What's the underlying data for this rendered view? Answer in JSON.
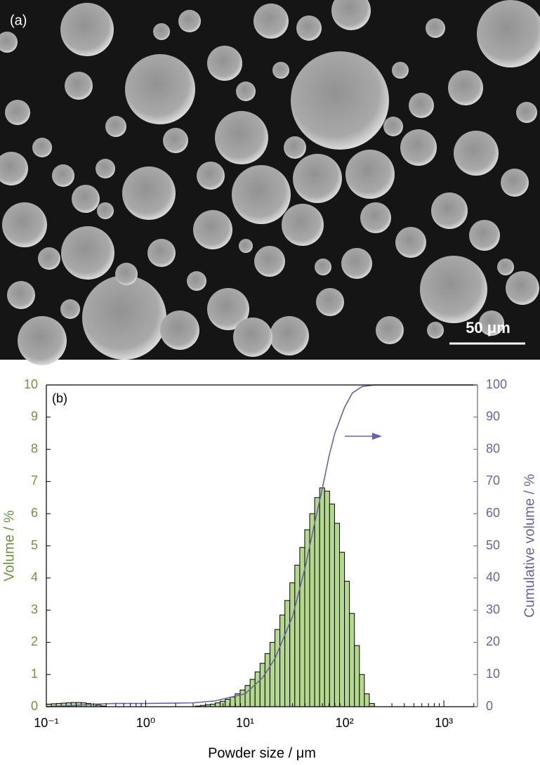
{
  "image": {
    "label": "(a)",
    "scale_bar": "50 μm"
  },
  "chart_data": {
    "type": "histogram",
    "annotation": "(b)",
    "x_label": "Powder size / μm",
    "y_label": "Volume / %",
    "y2_label": "Cumulative volume / %",
    "log_x": true,
    "color": "#b5d98c",
    "y_color": "#6f9440",
    "y2_color": "#6a62a8",
    "bins": [
      0.1,
      0.1122,
      0.1259,
      0.1413,
      0.1585,
      0.1778,
      0.1995,
      0.2239,
      0.2512,
      0.2818,
      0.3162,
      0.3548,
      0.3981,
      0.4467,
      0.5012,
      0.5623,
      0.631,
      0.7079,
      0.7943,
      0.8913,
      1,
      1.122,
      1.259,
      1.413,
      1.585,
      1.778,
      1.995,
      2.239,
      2.512,
      2.818,
      3.162,
      3.548,
      3.981,
      4.467,
      5.012,
      5.623,
      6.31,
      7.079,
      7.943,
      8.913,
      10,
      11.22,
      12.59,
      14.13,
      15.85,
      17.78,
      19.95,
      22.39,
      25.12,
      28.18,
      31.62,
      35.48,
      39.81,
      44.67,
      50.12,
      56.23,
      63.1,
      70.79,
      79.43,
      89.13,
      100,
      112.2,
      125.9,
      141.3,
      158.5,
      177.8,
      199.5
    ],
    "values": [
      0.08,
      0.09,
      0.1,
      0.11,
      0.12,
      0.13,
      0.13,
      0.12,
      0.1,
      0.08,
      0.05,
      0.02,
      0,
      0,
      0,
      0,
      0,
      0,
      0,
      0,
      0,
      0,
      0,
      0,
      0,
      0,
      0,
      0,
      0,
      0,
      0.02,
      0.04,
      0.06,
      0.08,
      0.12,
      0.17,
      0.23,
      0.3,
      0.4,
      0.52,
      0.66,
      0.85,
      1.08,
      1.35,
      1.65,
      2.0,
      2.4,
      2.85,
      3.3,
      3.85,
      4.4,
      4.95,
      5.5,
      6.0,
      6.5,
      6.8,
      6.7,
      6.3,
      5.7,
      4.8,
      3.9,
      2.9,
      1.9,
      1.0,
      0.4,
      0.1
    ],
    "line": {
      "axis": "y2",
      "color": "#6a62a8",
      "x": [
        0.1,
        0.2,
        0.3,
        0.5,
        1,
        3,
        5,
        10,
        15,
        20,
        30,
        40,
        50,
        60,
        70,
        80,
        100,
        120,
        150,
        200,
        2180
      ],
      "values": [
        0,
        0.4,
        0.8,
        1,
        1,
        1.2,
        1.8,
        4,
        9,
        15,
        28,
        43,
        57,
        68,
        78,
        85,
        93,
        97.5,
        99.5,
        100,
        100
      ]
    },
    "xlim": [
      0.1,
      2180
    ],
    "xticks": [
      {
        "value": 0.1,
        "label": "10⁻¹"
      },
      {
        "value": 1,
        "label": "10⁰"
      },
      {
        "value": 10,
        "label": "10¹"
      },
      {
        "value": 100,
        "label": "10²"
      },
      {
        "value": 1000,
        "label": "10³"
      }
    ],
    "xminorticks": [
      0.2,
      0.3,
      0.4,
      0.5,
      0.6,
      0.7,
      0.8,
      0.9,
      2,
      3,
      4,
      5,
      6,
      7,
      8,
      9,
      20,
      30,
      40,
      50,
      60,
      70,
      80,
      90,
      200,
      300,
      400,
      500,
      600,
      700,
      800,
      900,
      2000
    ],
    "ylim": [
      0,
      10
    ],
    "yticks": [
      0,
      1,
      2,
      3,
      4,
      5,
      6,
      7,
      8,
      9,
      10
    ],
    "y2lim": [
      0,
      100
    ],
    "y2ticks": [
      0,
      10,
      20,
      30,
      40,
      50,
      60,
      70,
      80,
      90,
      100
    ]
  }
}
